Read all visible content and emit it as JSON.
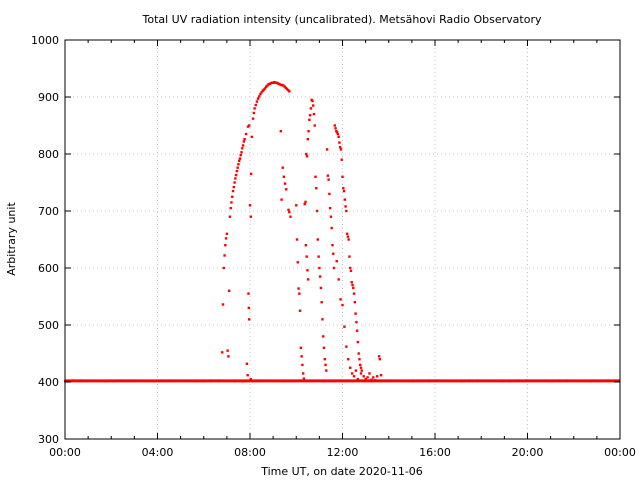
{
  "chart_data": {
    "type": "scatter",
    "title": "Total UV radiation intensity (uncalibrated). Metsähovi Radio Observatory",
    "xlabel": "Time UT, on date 2020-11-06",
    "ylabel": "Arbitrary unit",
    "xlim": [
      "00:00",
      "24:00"
    ],
    "ylim": [
      300,
      1000
    ],
    "x_ticks": [
      "00:00",
      "04:00",
      "08:00",
      "12:00",
      "16:00",
      "20:00",
      "00:00"
    ],
    "y_ticks": [
      300,
      400,
      500,
      600,
      700,
      800,
      900,
      1000
    ],
    "grid": true,
    "marker_color": "#ff0000",
    "series": [
      {
        "baseline": {
          "x_range": [
            "00:00",
            "24:00"
          ],
          "y": 402
        },
        "points": [
          [
            "06:48",
            452
          ],
          [
            "06:50",
            536
          ],
          [
            "06:52",
            600
          ],
          [
            "06:54",
            622
          ],
          [
            "06:56",
            640
          ],
          [
            "06:58",
            652
          ],
          [
            "07:00",
            660
          ],
          [
            "07:02",
            455
          ],
          [
            "07:04",
            445
          ],
          [
            "07:06",
            560
          ],
          [
            "07:08",
            690
          ],
          [
            "07:10",
            705
          ],
          [
            "07:12",
            715
          ],
          [
            "07:14",
            725
          ],
          [
            "07:16",
            735
          ],
          [
            "07:18",
            742
          ],
          [
            "07:20",
            750
          ],
          [
            "07:22",
            757
          ],
          [
            "07:24",
            763
          ],
          [
            "07:26",
            770
          ],
          [
            "07:28",
            776
          ],
          [
            "07:30",
            782
          ],
          [
            "07:32",
            788
          ],
          [
            "07:34",
            792
          ],
          [
            "07:36",
            798
          ],
          [
            "07:38",
            803
          ],
          [
            "07:40",
            810
          ],
          [
            "07:42",
            815
          ],
          [
            "07:44",
            822
          ],
          [
            "07:46",
            826
          ],
          [
            "07:50",
            835
          ],
          [
            "07:55",
            848
          ],
          [
            "07:58",
            850
          ],
          [
            "07:56",
            555
          ],
          [
            "07:57",
            530
          ],
          [
            "07:58",
            510
          ],
          [
            "07:52",
            432
          ],
          [
            "07:54",
            412
          ],
          [
            "08:02",
            405
          ],
          [
            "08:00",
            710
          ],
          [
            "08:02",
            690
          ],
          [
            "08:03",
            765
          ],
          [
            "08:05",
            830
          ],
          [
            "08:08",
            862
          ],
          [
            "08:10",
            872
          ],
          [
            "08:12",
            880
          ],
          [
            "08:15",
            886
          ],
          [
            "08:18",
            892
          ],
          [
            "08:21",
            897
          ],
          [
            "08:24",
            901
          ],
          [
            "08:27",
            905
          ],
          [
            "08:30",
            908
          ],
          [
            "08:33",
            911
          ],
          [
            "08:36",
            913
          ],
          [
            "08:39",
            915
          ],
          [
            "08:42",
            918
          ],
          [
            "08:45",
            920
          ],
          [
            "08:48",
            922
          ],
          [
            "08:51",
            923
          ],
          [
            "08:54",
            924
          ],
          [
            "08:57",
            925
          ],
          [
            "09:00",
            925
          ],
          [
            "09:03",
            926
          ],
          [
            "09:06",
            925
          ],
          [
            "09:09",
            925
          ],
          [
            "09:12",
            924
          ],
          [
            "09:15",
            923
          ],
          [
            "09:18",
            922
          ],
          [
            "09:21",
            921
          ],
          [
            "09:24",
            921
          ],
          [
            "09:27",
            920
          ],
          [
            "09:30",
            918
          ],
          [
            "09:33",
            916
          ],
          [
            "09:36",
            914
          ],
          [
            "09:39",
            912
          ],
          [
            "09:42",
            910
          ],
          [
            "09:20",
            840
          ],
          [
            "09:22",
            720
          ],
          [
            "09:25",
            776
          ],
          [
            "09:28",
            760
          ],
          [
            "09:31",
            748
          ],
          [
            "09:34",
            738
          ],
          [
            "09:40",
            702
          ],
          [
            "09:42",
            698
          ],
          [
            "09:45",
            690
          ],
          [
            "10:00",
            710
          ],
          [
            "10:02",
            650
          ],
          [
            "10:04",
            610
          ],
          [
            "10:06",
            564
          ],
          [
            "10:08",
            555
          ],
          [
            "10:10",
            525
          ],
          [
            "10:12",
            460
          ],
          [
            "10:14",
            445
          ],
          [
            "10:16",
            430
          ],
          [
            "10:18",
            415
          ],
          [
            "10:20",
            406
          ],
          [
            "10:22",
            712
          ],
          [
            "10:24",
            716
          ],
          [
            "10:26",
            800
          ],
          [
            "10:28",
            796
          ],
          [
            "10:30",
            826
          ],
          [
            "10:32",
            840
          ],
          [
            "10:34",
            860
          ],
          [
            "10:36",
            868
          ],
          [
            "10:38",
            880
          ],
          [
            "10:40",
            895
          ],
          [
            "10:42",
            893
          ],
          [
            "10:44",
            885
          ],
          [
            "10:46",
            870
          ],
          [
            "10:25",
            640
          ],
          [
            "10:27",
            620
          ],
          [
            "10:29",
            596
          ],
          [
            "10:31",
            580
          ],
          [
            "10:48",
            850
          ],
          [
            "10:50",
            760
          ],
          [
            "10:52",
            740
          ],
          [
            "10:54",
            700
          ],
          [
            "10:56",
            650
          ],
          [
            "10:58",
            620
          ],
          [
            "11:00",
            600
          ],
          [
            "11:02",
            585
          ],
          [
            "11:04",
            565
          ],
          [
            "11:06",
            540
          ],
          [
            "11:08",
            510
          ],
          [
            "11:10",
            480
          ],
          [
            "11:12",
            460
          ],
          [
            "11:14",
            440
          ],
          [
            "11:16",
            430
          ],
          [
            "11:18",
            420
          ],
          [
            "11:20",
            808
          ],
          [
            "11:22",
            762
          ],
          [
            "11:24",
            755
          ],
          [
            "11:26",
            730
          ],
          [
            "11:28",
            705
          ],
          [
            "11:30",
            690
          ],
          [
            "11:32",
            670
          ],
          [
            "11:34",
            640
          ],
          [
            "11:36",
            625
          ],
          [
            "11:38",
            600
          ],
          [
            "11:40",
            850
          ],
          [
            "11:42",
            845
          ],
          [
            "11:44",
            840
          ],
          [
            "11:46",
            838
          ],
          [
            "11:48",
            835
          ],
          [
            "11:50",
            830
          ],
          [
            "11:52",
            820
          ],
          [
            "11:54",
            812
          ],
          [
            "11:56",
            808
          ],
          [
            "11:58",
            790
          ],
          [
            "12:00",
            760
          ],
          [
            "12:02",
            740
          ],
          [
            "12:04",
            735
          ],
          [
            "12:06",
            720
          ],
          [
            "12:08",
            708
          ],
          [
            "12:10",
            700
          ],
          [
            "12:12",
            660
          ],
          [
            "12:14",
            655
          ],
          [
            "12:16",
            650
          ],
          [
            "12:18",
            620
          ],
          [
            "12:20",
            600
          ],
          [
            "12:22",
            595
          ],
          [
            "12:24",
            575
          ],
          [
            "12:26",
            570
          ],
          [
            "12:28",
            565
          ],
          [
            "12:30",
            555
          ],
          [
            "12:32",
            540
          ],
          [
            "12:34",
            520
          ],
          [
            "12:36",
            505
          ],
          [
            "12:38",
            490
          ],
          [
            "12:40",
            470
          ],
          [
            "12:42",
            450
          ],
          [
            "12:44",
            440
          ],
          [
            "12:46",
            430
          ],
          [
            "12:48",
            425
          ],
          [
            "12:50",
            420
          ],
          [
            "11:45",
            612
          ],
          [
            "11:50",
            580
          ],
          [
            "11:55",
            545
          ],
          [
            "12:00",
            535
          ],
          [
            "12:05",
            497
          ],
          [
            "12:10",
            462
          ],
          [
            "12:15",
            440
          ],
          [
            "12:20",
            425
          ],
          [
            "12:25",
            415
          ],
          [
            "12:30",
            410
          ],
          [
            "12:35",
            420
          ],
          [
            "12:40",
            405
          ],
          [
            "12:48",
            415
          ],
          [
            "12:55",
            410
          ],
          [
            "13:00",
            405
          ],
          [
            "13:05",
            408
          ],
          [
            "13:10",
            415
          ],
          [
            "13:15",
            404
          ],
          [
            "13:20",
            408
          ],
          [
            "13:25",
            403
          ],
          [
            "13:30",
            410
          ],
          [
            "13:35",
            445
          ],
          [
            "13:37",
            440
          ],
          [
            "13:40",
            412
          ]
        ]
      }
    ]
  }
}
